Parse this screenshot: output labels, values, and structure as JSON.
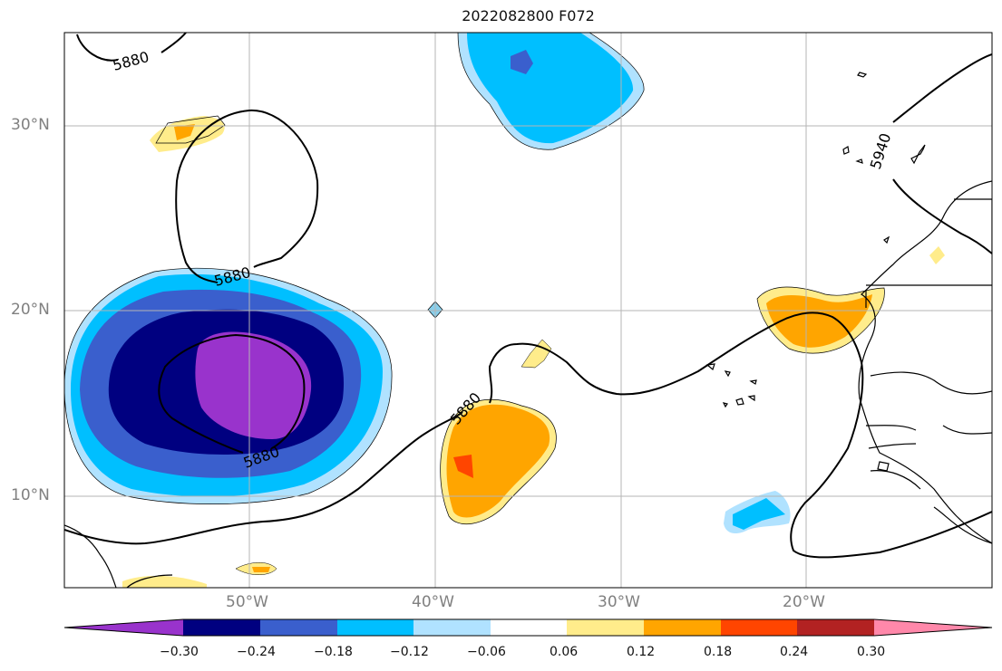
{
  "title": "2022082800 F072",
  "contour_labels": [
    "5880",
    "5880",
    "5880",
    "5880",
    "5940"
  ],
  "lat_labels": [
    "30°N",
    "20°N",
    "10°N"
  ],
  "lon_labels": [
    "50°W",
    "40°W",
    "30°W",
    "20°W"
  ],
  "colorbar": {
    "tick_labels": [
      "−0.30",
      "−0.24",
      "−0.18",
      "−0.12",
      "−0.06",
      "0.06",
      "0.12",
      "0.18",
      "0.24",
      "0.30"
    ],
    "colors": [
      "#9933cc",
      "#000080",
      "#3a5fcd",
      "#00bfff",
      "#b0e2ff",
      "#ffffff",
      "#ffec8b",
      "#ffa500",
      "#ff4500",
      "#b22222",
      "#ff88aa"
    ]
  }
}
